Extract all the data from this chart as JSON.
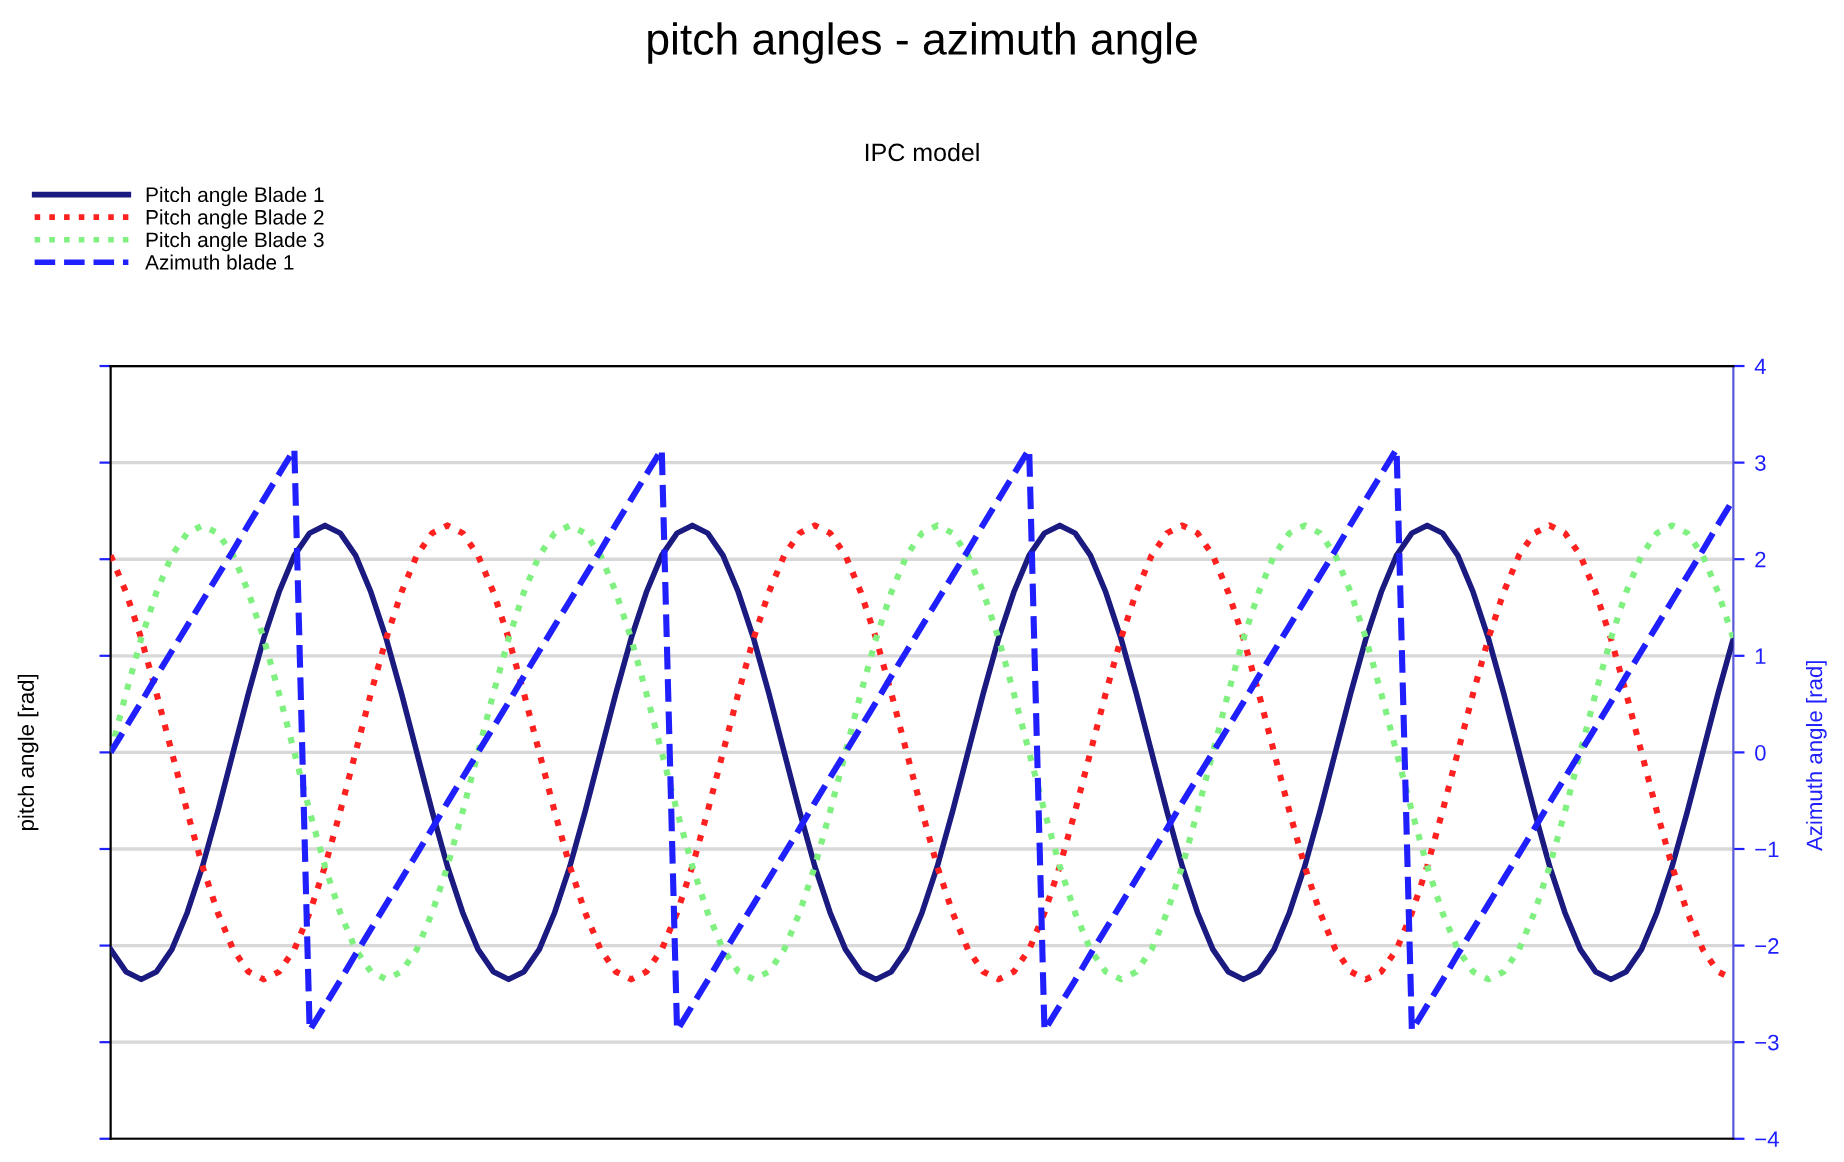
{
  "chart_data": {
    "type": "line",
    "title": "pitch angles - azimuth angle",
    "subtitle": "IPC model",
    "ylabel": "pitch angle [rad]",
    "y2label": "Azimuth angle [rad]",
    "categories": [
      null,
      null,
      null,
      null,
      null,
      null,
      null,
      null,
      null,
      null,
      null,
      null,
      null,
      null,
      null,
      null,
      null,
      null,
      null,
      null,
      null,
      null,
      null,
      null,
      null,
      null,
      null,
      null,
      null,
      null,
      null,
      null,
      null,
      null,
      null,
      null,
      null,
      null,
      null,
      null,
      null,
      null,
      null,
      null,
      null,
      null,
      null,
      null,
      null,
      null,
      null,
      null,
      null,
      null,
      null,
      null,
      null,
      null,
      null,
      null,
      null,
      null,
      null,
      null,
      null,
      null,
      null,
      null,
      null,
      null,
      null,
      null,
      null,
      null,
      null,
      null,
      null,
      null,
      null,
      null,
      null,
      null,
      null,
      null,
      null,
      null,
      null,
      null,
      null,
      null,
      null,
      null,
      null,
      null,
      null,
      null,
      null,
      null,
      null,
      null,
      null,
      null,
      null,
      null,
      null,
      null,
      null
    ],
    "series": [
      {
        "name": "Pitch angle Blade 1",
        "color": "#1a1a80",
        "line_style": "solid",
        "values": [
          -2.04,
          -2.27,
          -2.35,
          -2.27,
          -2.04,
          -1.66,
          -1.18,
          -0.61,
          0,
          0.61,
          1.18,
          1.66,
          2.04,
          2.27,
          2.35,
          2.27,
          2.04,
          1.66,
          1.18,
          0.61,
          0,
          -0.61,
          -1.18,
          -1.66,
          -2.04,
          -2.27,
          -2.35,
          -2.27,
          -2.04,
          -1.66,
          -1.18,
          -0.61,
          0,
          0.61,
          1.18,
          1.66,
          2.04,
          2.27,
          2.35,
          2.27,
          2.04,
          1.66,
          1.18,
          0.61,
          0,
          -0.61,
          -1.18,
          -1.66,
          -2.04,
          -2.27,
          -2.35,
          -2.27,
          -2.04,
          -1.66,
          -1.18,
          -0.61,
          0,
          0.61,
          1.18,
          1.66,
          2.04,
          2.27,
          2.35,
          2.27,
          2.04,
          1.66,
          1.18,
          0.61,
          0,
          -0.61,
          -1.18,
          -1.66,
          -2.04,
          -2.27,
          -2.35,
          -2.27,
          -2.04,
          -1.66,
          -1.18,
          -0.61,
          0,
          0.61,
          1.18,
          1.66,
          2.04,
          2.27,
          2.35,
          2.27,
          2.04,
          1.66,
          1.18,
          0.61,
          0,
          -0.61,
          -1.18,
          -1.66,
          -2.04,
          -2.27,
          -2.35,
          -2.27,
          -2.04,
          -1.66,
          -1.18,
          -0.61,
          0,
          0.61,
          1.18
        ]
      },
      {
        "name": "Pitch angle Blade 2",
        "color": "#ff2020",
        "line_style": "dotted",
        "values": [
          2.04,
          1.66,
          1.18,
          0.61,
          0,
          -0.61,
          -1.18,
          -1.66,
          -2.04,
          -2.27,
          -2.35,
          -2.27,
          -2.04,
          -1.66,
          -1.18,
          -0.61,
          0,
          0.61,
          1.18,
          1.66,
          2.04,
          2.27,
          2.35,
          2.27,
          2.04,
          1.66,
          1.18,
          0.61,
          0,
          -0.61,
          -1.18,
          -1.66,
          -2.04,
          -2.27,
          -2.35,
          -2.27,
          -2.04,
          -1.66,
          -1.18,
          -0.61,
          0,
          0.61,
          1.18,
          1.66,
          2.04,
          2.27,
          2.35,
          2.27,
          2.04,
          1.66,
          1.18,
          0.61,
          0,
          -0.61,
          -1.18,
          -1.66,
          -2.04,
          -2.27,
          -2.35,
          -2.27,
          -2.04,
          -1.66,
          -1.18,
          -0.61,
          0,
          0.61,
          1.18,
          1.66,
          2.04,
          2.27,
          2.35,
          2.27,
          2.04,
          1.66,
          1.18,
          0.61,
          0,
          -0.61,
          -1.18,
          -1.66,
          -2.04,
          -2.27,
          -2.35,
          -2.27,
          -2.04,
          -1.66,
          -1.18,
          -0.61,
          0,
          0.61,
          1.18,
          1.66,
          2.04,
          2.27,
          2.35,
          2.27,
          2.04,
          1.66,
          1.18,
          0.61,
          0,
          -0.61,
          -1.18,
          -1.66,
          -2.04,
          -2.27,
          -2.35
        ]
      },
      {
        "name": "Pitch angle Blade 3",
        "color": "#80f080",
        "line_style": "dotted",
        "values": [
          0,
          0.61,
          1.18,
          1.66,
          2.04,
          2.27,
          2.35,
          2.27,
          2.04,
          1.66,
          1.18,
          0.61,
          0,
          -0.61,
          -1.18,
          -1.66,
          -2.04,
          -2.27,
          -2.35,
          -2.27,
          -2.04,
          -1.66,
          -1.18,
          -0.61,
          0,
          0.61,
          1.18,
          1.66,
          2.04,
          2.27,
          2.35,
          2.27,
          2.04,
          1.66,
          1.18,
          0.61,
          0,
          -0.61,
          -1.18,
          -1.66,
          -2.04,
          -2.27,
          -2.35,
          -2.27,
          -2.04,
          -1.66,
          -1.18,
          -0.61,
          0,
          0.61,
          1.18,
          1.66,
          2.04,
          2.27,
          2.35,
          2.27,
          2.04,
          1.66,
          1.18,
          0.61,
          0,
          -0.61,
          -1.18,
          -1.66,
          -2.04,
          -2.27,
          -2.35,
          -2.27,
          -2.04,
          -1.66,
          -1.18,
          -0.61,
          0,
          0.61,
          1.18,
          1.66,
          2.04,
          2.27,
          2.35,
          2.27,
          2.04,
          1.66,
          1.18,
          0.61,
          0,
          -0.61,
          -1.18,
          -1.66,
          -2.04,
          -2.27,
          -2.35,
          -2.27,
          -2.04,
          -1.66,
          -1.18,
          -0.61,
          0,
          0.61,
          1.18,
          1.66,
          2.04,
          2.27,
          2.35,
          2.27,
          2.04,
          1.66,
          1.18
        ]
      },
      {
        "name": "Azimuth blade 1",
        "color": "#2020ff",
        "line_style": "dashed",
        "values": [
          0,
          0.26,
          0.52,
          0.79,
          1.05,
          1.31,
          1.57,
          1.83,
          2.09,
          2.36,
          2.62,
          2.88,
          3.14,
          -2.88,
          -2.62,
          -2.36,
          -2.09,
          -1.83,
          -1.57,
          -1.31,
          -1.05,
          -0.79,
          -0.52,
          -0.26,
          0,
          0.26,
          0.52,
          0.79,
          1.05,
          1.31,
          1.57,
          1.83,
          2.09,
          2.36,
          2.62,
          2.88,
          3.14,
          -2.88,
          -2.62,
          -2.36,
          -2.09,
          -1.83,
          -1.57,
          -1.31,
          -1.05,
          -0.79,
          -0.52,
          -0.26,
          0,
          0.26,
          0.52,
          0.79,
          1.05,
          1.31,
          1.57,
          1.83,
          2.09,
          2.36,
          2.62,
          2.88,
          3.14,
          -2.88,
          -2.62,
          -2.36,
          -2.09,
          -1.83,
          -1.57,
          -1.31,
          -1.05,
          -0.79,
          -0.52,
          -0.26,
          0,
          0.26,
          0.52,
          0.79,
          1.05,
          1.31,
          1.57,
          1.83,
          2.09,
          2.36,
          2.62,
          2.88,
          3.14,
          -2.88,
          -2.62,
          -2.36,
          -2.09,
          -1.83,
          -1.57,
          -1.31,
          -1.05,
          -0.79,
          -0.52,
          -0.26,
          0,
          0.26,
          0.52,
          0.79,
          1.05,
          1.31,
          1.57,
          1.83,
          2.09,
          2.36,
          2.62
        ]
      }
    ],
    "ylim": [
      -4,
      4
    ],
    "yticks": [
      -4,
      -3,
      -2,
      -1,
      0,
      1,
      2,
      3,
      4
    ],
    "tick_labels": "y",
    "grid": "y",
    "legend": "top left",
    "marker": "none"
  }
}
